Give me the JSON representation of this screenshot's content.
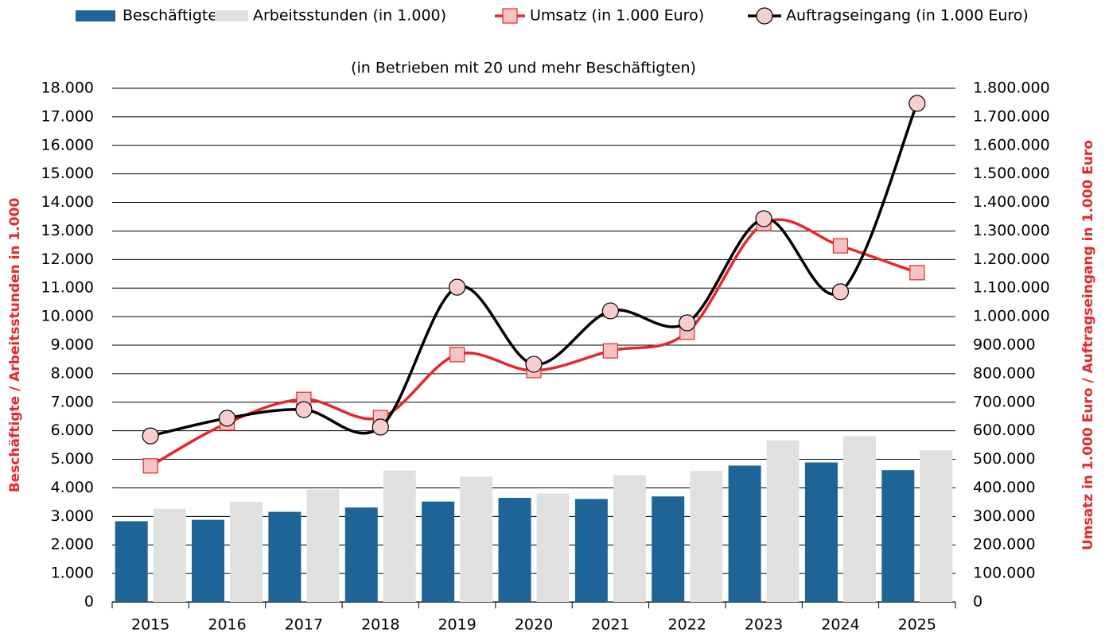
{
  "chart_data": {
    "type": "bar",
    "subtitle": "(in Betrieben mit 20 und mehr Beschäftigten)",
    "ylabel": "Beschäftigte / Arbeitsstunden in 1.000",
    "y2label": "Umsatz in 1.000 Euro / Auftragseingang  in 1.000 Euro",
    "categories": [
      "2015",
      "2016",
      "2017",
      "2018",
      "2019",
      "2020",
      "2021",
      "2022",
      "2023",
      "2024",
      "2025"
    ],
    "series": [
      {
        "name": "Beschäftigte",
        "type": "bar",
        "color": "#1f6496",
        "values": [
          2830,
          2880,
          3160,
          3310,
          3520,
          3650,
          3610,
          3700,
          4780,
          4890,
          4620
        ]
      },
      {
        "name": "Arbeitsstunden (in 1.000)",
        "type": "bar",
        "color": "#e0e0e0",
        "values": [
          3270,
          3510,
          3940,
          4610,
          4390,
          3800,
          4440,
          4590,
          5660,
          5810,
          5320
        ]
      },
      {
        "name": "Umsatz (in 1.000 Euro)",
        "type": "line",
        "marker": "square",
        "axis": "y2",
        "color": "#e8262b",
        "marker_color": "#f6c3c3",
        "values": [
          477000,
          627000,
          710000,
          646000,
          867000,
          811000,
          880000,
          945000,
          1326000,
          1248000,
          1154000
        ]
      },
      {
        "name": "Auftragseingang (in 1.000 Euro)",
        "type": "line",
        "marker": "circle",
        "axis": "y2",
        "color": "#000000",
        "marker_color": "#f8cdcd",
        "values": [
          582000,
          644000,
          674000,
          613000,
          1103000,
          833000,
          1020000,
          978000,
          1343000,
          1087000,
          1747000
        ]
      }
    ],
    "ylim": [
      0,
      18000
    ],
    "yticks": [
      0,
      {
        "value": 1000,
        "label": "1.000"
      },
      {
        "value": 2000,
        "label": "2.000"
      },
      {
        "value": 3000,
        "label": "3.000"
      },
      {
        "value": 4000,
        "label": "4.000"
      },
      {
        "value": 5000,
        "label": "5.000"
      },
      {
        "value": 6000,
        "label": "6.000"
      },
      {
        "value": 7000,
        "label": "7.000"
      },
      {
        "value": 8000,
        "label": "8.000"
      },
      {
        "value": 9000,
        "label": "9.000"
      },
      {
        "value": 10000,
        "label": "10.000"
      },
      {
        "value": 11000,
        "label": "11.000"
      },
      {
        "value": 12000,
        "label": "12.000"
      },
      {
        "value": 13000,
        "label": "13.000"
      },
      {
        "value": 14000,
        "label": "14.000"
      },
      {
        "value": 15000,
        "label": "15.000"
      },
      {
        "value": 16000,
        "label": "16.000"
      },
      {
        "value": 17000,
        "label": "17.000"
      },
      {
        "value": 18000,
        "label": "18.000"
      }
    ],
    "y2lim": [
      0,
      1800000
    ],
    "y2ticks": [
      0,
      {
        "value": 100000,
        "label": "100.000"
      },
      {
        "value": 200000,
        "label": "200.000"
      },
      {
        "value": 300000,
        "label": "300.000"
      },
      {
        "value": 400000,
        "label": "400.000"
      },
      {
        "value": 500000,
        "label": "500.000"
      },
      {
        "value": 600000,
        "label": "600.000"
      },
      {
        "value": 700000,
        "label": "700.000"
      },
      {
        "value": 800000,
        "label": "800.000"
      },
      {
        "value": 900000,
        "label": "900.000"
      },
      {
        "value": 1000000,
        "label": "1.000.000"
      },
      {
        "value": 1100000,
        "label": "1.100.000"
      },
      {
        "value": 1200000,
        "label": "1.200.000"
      },
      {
        "value": 1300000,
        "label": "1.300.000"
      },
      {
        "value": 1400000,
        "label": "1.400.000"
      },
      {
        "value": 1500000,
        "label": "1.500.000"
      },
      {
        "value": 1600000,
        "label": "1.600.000"
      },
      {
        "value": 1700000,
        "label": "1.700.000"
      },
      {
        "value": 1800000,
        "label": "1.800.000"
      }
    ],
    "grid": true,
    "axis_label_color": "#e8262b",
    "legend": "top"
  }
}
